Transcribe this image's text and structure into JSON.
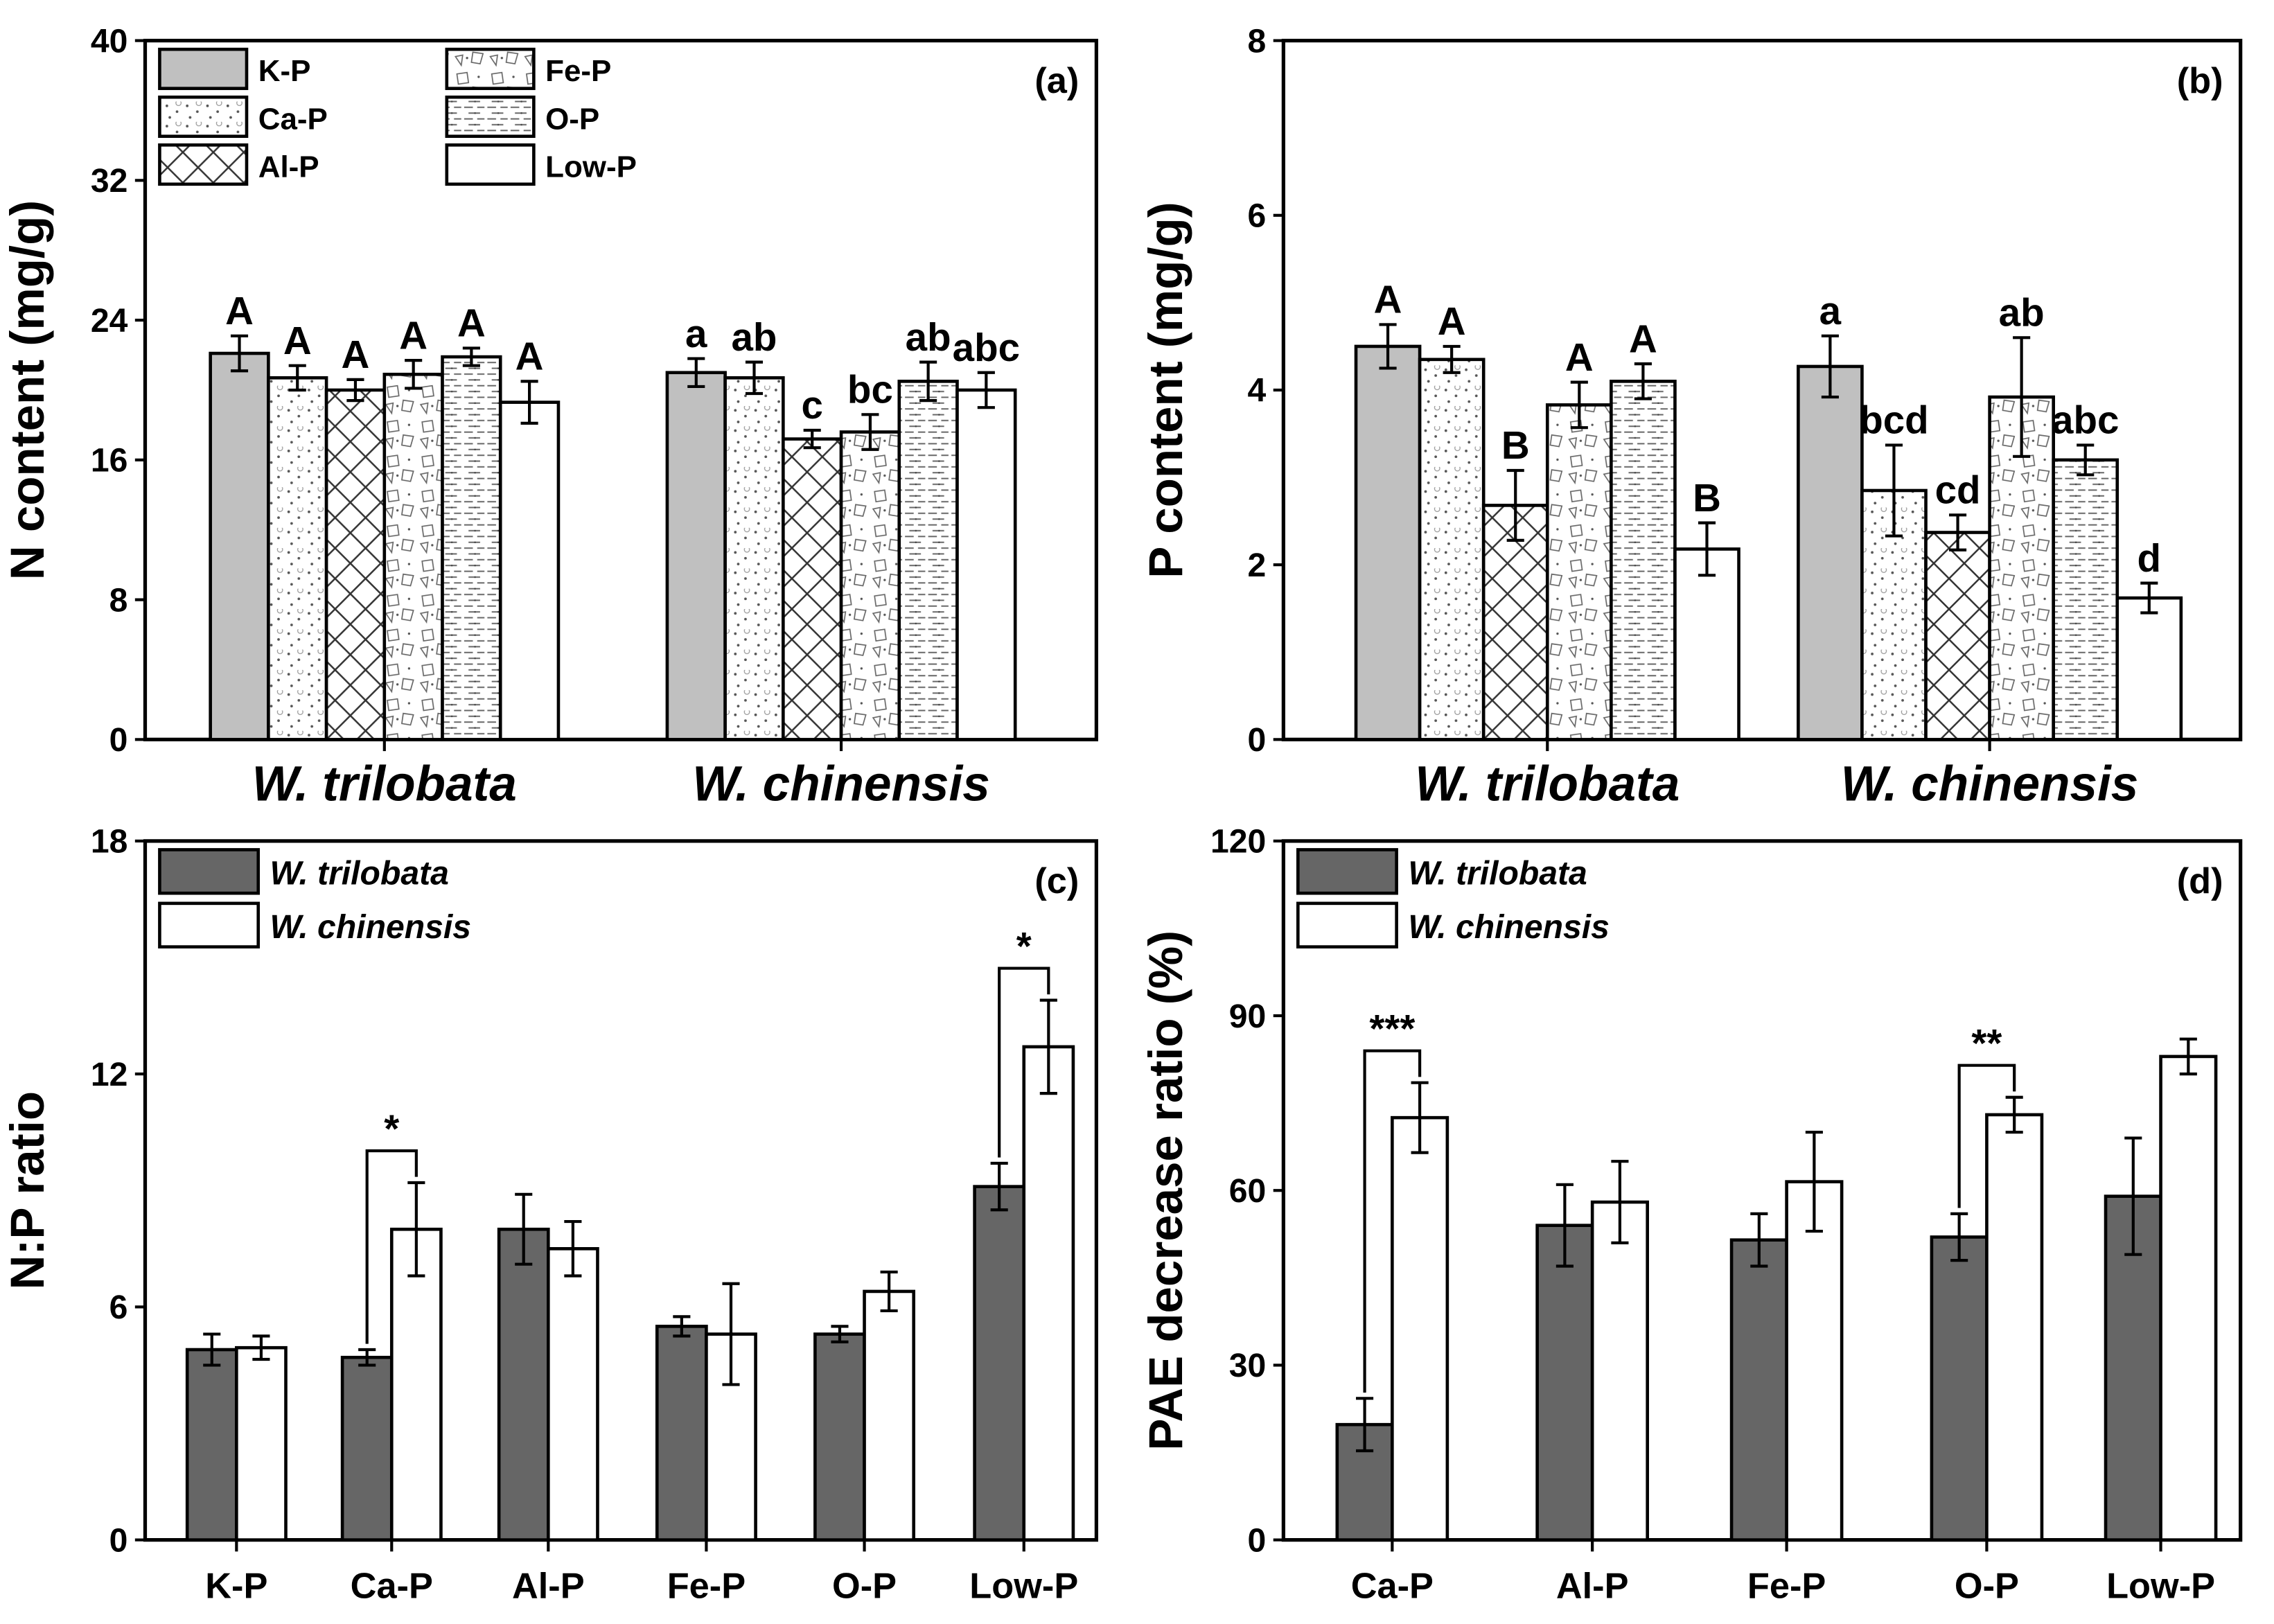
{
  "chart_data": [
    {
      "panel": "(a)",
      "type": "bar",
      "ylabel": "N content (mg/g)",
      "xlabel": "",
      "ylim": [
        0,
        40
      ],
      "yticks": [
        0,
        8,
        16,
        24,
        32,
        40
      ],
      "categories": [
        "W. trilobata",
        "W. chinensis"
      ],
      "legend": [
        "K-P",
        "Ca-P",
        "Al-P",
        "Fe-P",
        "O-P",
        "Low-P"
      ],
      "legend_placement": "top-left",
      "series": [
        {
          "name": "K-P",
          "values": [
            22.1,
            21.0
          ],
          "errors": [
            1.0,
            0.8
          ],
          "letters": [
            "A",
            "a"
          ]
        },
        {
          "name": "Ca-P",
          "values": [
            20.7,
            20.7
          ],
          "errors": [
            0.7,
            0.9
          ],
          "letters": [
            "A",
            "ab"
          ]
        },
        {
          "name": "Al-P",
          "values": [
            20.0,
            17.2
          ],
          "errors": [
            0.6,
            0.5
          ],
          "letters": [
            "A",
            "c"
          ]
        },
        {
          "name": "Fe-P",
          "values": [
            20.9,
            17.6
          ],
          "errors": [
            0.8,
            1.0
          ],
          "letters": [
            "A",
            "bc"
          ]
        },
        {
          "name": "O-P",
          "values": [
            21.9,
            20.5
          ],
          "errors": [
            0.5,
            1.1
          ],
          "letters": [
            "A",
            "ab"
          ]
        },
        {
          "name": "Low-P",
          "values": [
            19.3,
            20.0
          ],
          "errors": [
            1.2,
            1.0
          ],
          "letters": [
            "A",
            "abc"
          ]
        }
      ]
    },
    {
      "panel": "(b)",
      "type": "bar",
      "ylabel": "P content (mg/g)",
      "xlabel": "",
      "ylim": [
        0,
        8
      ],
      "yticks": [
        0,
        2,
        4,
        6,
        8
      ],
      "categories": [
        "W. trilobata",
        "W. chinensis"
      ],
      "series": [
        {
          "name": "K-P",
          "values": [
            4.5,
            4.27
          ],
          "errors": [
            0.25,
            0.35
          ],
          "letters": [
            "A",
            "a"
          ]
        },
        {
          "name": "Ca-P",
          "values": [
            4.35,
            2.85
          ],
          "errors": [
            0.15,
            0.52
          ],
          "letters": [
            "A",
            "bcd"
          ]
        },
        {
          "name": "Al-P",
          "values": [
            2.68,
            2.37
          ],
          "errors": [
            0.4,
            0.2
          ],
          "letters": [
            "B",
            "cd"
          ]
        },
        {
          "name": "Fe-P",
          "values": [
            3.83,
            3.92
          ],
          "errors": [
            0.26,
            0.68
          ],
          "letters": [
            "A",
            "ab"
          ]
        },
        {
          "name": "O-P",
          "values": [
            4.1,
            3.2
          ],
          "errors": [
            0.2,
            0.17
          ],
          "letters": [
            "A",
            "abc"
          ]
        },
        {
          "name": "Low-P",
          "values": [
            2.18,
            1.62
          ],
          "errors": [
            0.3,
            0.17
          ],
          "letters": [
            "B",
            "d"
          ]
        }
      ]
    },
    {
      "panel": "(c)",
      "type": "bar",
      "ylabel": "N:P ratio",
      "xlabel": "",
      "ylim": [
        0,
        18
      ],
      "yticks": [
        0,
        6,
        12,
        18
      ],
      "categories": [
        "K-P",
        "Ca-P",
        "Al-P",
        "Fe-P",
        "O-P",
        "Low-P"
      ],
      "legend": [
        "W. trilobata",
        "W. chinensis"
      ],
      "legend_placement": "top-left",
      "series": [
        {
          "name": "W. trilobata",
          "values": [
            4.9,
            4.7,
            8.0,
            5.5,
            5.3,
            9.1
          ],
          "errors": [
            0.4,
            0.2,
            0.9,
            0.25,
            0.2,
            0.6
          ]
        },
        {
          "name": "W. chinensis",
          "values": [
            4.95,
            8.0,
            7.5,
            5.3,
            6.4,
            12.7
          ],
          "errors": [
            0.3,
            1.2,
            0.7,
            1.3,
            0.5,
            1.2
          ]
        }
      ],
      "significance": [
        null,
        "*",
        null,
        null,
        null,
        "*"
      ]
    },
    {
      "panel": "(d)",
      "type": "bar",
      "ylabel": "PAE decrease ratio (%)",
      "xlabel": "",
      "ylim": [
        0,
        120
      ],
      "yticks": [
        0,
        30,
        60,
        90,
        120
      ],
      "categories": [
        "Ca-P",
        "Al-P",
        "Fe-P",
        "O-P",
        "Low-P"
      ],
      "legend": [
        "W. trilobata",
        "W. chinensis"
      ],
      "legend_placement": "top-left",
      "series": [
        {
          "name": "W. trilobata",
          "values": [
            19.8,
            54.0,
            51.5,
            52.0,
            59.0
          ],
          "errors": [
            4.5,
            7.0,
            4.5,
            4.0,
            10.0
          ]
        },
        {
          "name": "W. chinensis",
          "values": [
            72.5,
            58.0,
            61.5,
            73.0,
            83.0
          ],
          "errors": [
            6.0,
            7.0,
            8.5,
            3.0,
            3.0
          ]
        }
      ],
      "significance": [
        "***",
        null,
        null,
        "**",
        null
      ]
    }
  ]
}
